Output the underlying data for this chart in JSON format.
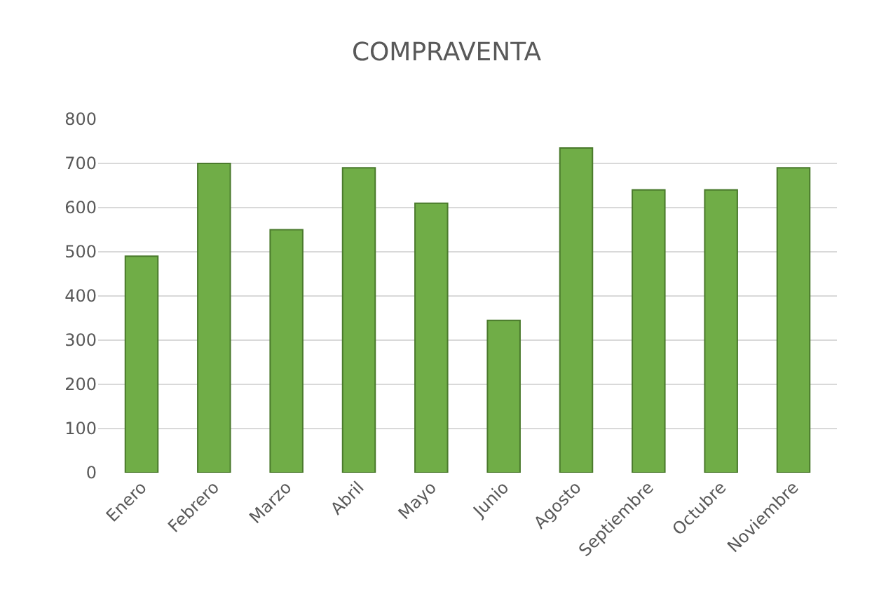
{
  "chart_data": {
    "type": "bar",
    "title": "COMPRAVENTA",
    "categories": [
      "Enero",
      "Febrero",
      "Marzo",
      "Abril",
      "Mayo",
      "Junio",
      "Agosto",
      "Septiembre",
      "Octubre",
      "Noviembre"
    ],
    "values": [
      490,
      700,
      550,
      690,
      610,
      345,
      735,
      640,
      640,
      690
    ],
    "color": "#70ad47",
    "ylim": [
      0,
      800
    ],
    "yticks": [
      0,
      100,
      200,
      300,
      400,
      500,
      600,
      700,
      800
    ],
    "grid": "y"
  }
}
